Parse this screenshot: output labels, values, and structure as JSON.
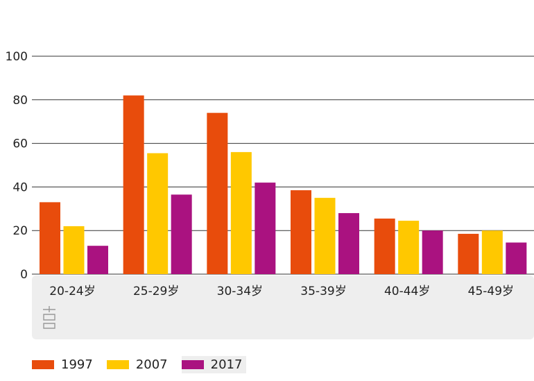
{
  "chart_data": {
    "type": "bar",
    "categories": [
      "20-24岁",
      "25-29岁",
      "30-34岁",
      "35-39岁",
      "40-44岁",
      "45-49岁"
    ],
    "series": [
      {
        "name": "1997",
        "color": "#e84c0c",
        "values": [
          33,
          82,
          74,
          38.5,
          25.5,
          18.5
        ]
      },
      {
        "name": "2007",
        "color": "#ffc800",
        "values": [
          22,
          55.5,
          56,
          35,
          24.5,
          20
        ]
      },
      {
        "name": "2017",
        "color": "#aa1280",
        "values": [
          13,
          36.5,
          42,
          28,
          20,
          14.5
        ]
      }
    ],
    "yticks": [
      0,
      20,
      40,
      60,
      80,
      100
    ],
    "ylim": [
      0,
      100
    ],
    "grid": true,
    "legend_position": "bottom-left"
  },
  "colors": {
    "axis_band": "#eeeeee",
    "gridline": "#333333",
    "icon": "#999999"
  },
  "icons": {
    "band_icon": "chart-glyph-icon"
  }
}
